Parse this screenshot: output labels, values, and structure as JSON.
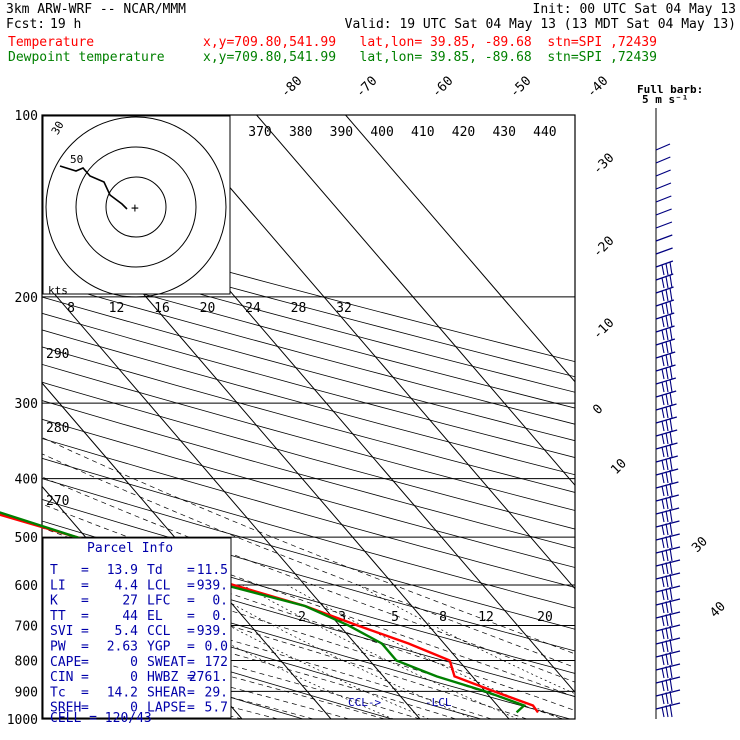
{
  "header": {
    "model": "3km ARW-WRF -- NCAR/MMM",
    "init": "Init: 00 UTC Sat 04 May 13",
    "fcst_label": "Fcst:",
    "fcst_hour": "19 h",
    "valid": "Valid: 19 UTC Sat 04 May 13 (13 MDT Sat 04 May 13)"
  },
  "legend": [
    {
      "label": "Temperature",
      "info": "x,y=709.80,541.99   lat,lon= 39.85, -89.68  stn=SPI ,72439",
      "color": "#ff0000"
    },
    {
      "label": "Dewpoint temperature",
      "info": "x,y=709.80,541.99   lat,lon= 39.85, -89.68  stn=SPI ,72439",
      "color": "#008000"
    }
  ],
  "chart_data": {
    "type": "line",
    "title": "Skew-T log-P sounding",
    "ylabel": "Pressure (hPa)",
    "pressure_levels": [
      100,
      200,
      300,
      400,
      500,
      600,
      700,
      800,
      900,
      1000
    ],
    "temp_labels": [
      "-80",
      "-70",
      "-60",
      "-50",
      "-40",
      "-30",
      "-20",
      "-10",
      "0",
      "10",
      "30",
      "40"
    ],
    "theta_e_labels": [
      "370",
      "380",
      "390",
      "400",
      "410",
      "420",
      "430",
      "440"
    ],
    "hodo_scale_labels": [
      "8",
      "12",
      "16",
      "20",
      "24",
      "28",
      "32"
    ],
    "mixing_ratio_labels": [
      "2",
      "3",
      "5",
      "8",
      "12",
      "20"
    ],
    "theta_labels": [
      "290",
      "280",
      "270"
    ],
    "hodograph": {
      "label_kts": "kts",
      "label_30": "30",
      "label_50": "50"
    },
    "full_barb": "Full barb:",
    "barb_unit": "5 m s⁻¹",
    "ccl_marker": "CCL->",
    "lcl_marker": "-LCL",
    "series": [
      {
        "name": "Temperature",
        "color": "#ff0000",
        "points": [
          [
            100,
            -55
          ],
          [
            115,
            -54
          ],
          [
            130,
            -52
          ],
          [
            160,
            -50
          ],
          [
            180,
            -53
          ],
          [
            200,
            -55
          ],
          [
            220,
            -57
          ],
          [
            250,
            -58
          ],
          [
            300,
            -53
          ],
          [
            350,
            -44
          ],
          [
            400,
            -37
          ],
          [
            450,
            -29
          ],
          [
            500,
            -21
          ],
          [
            550,
            -14
          ],
          [
            600,
            -8
          ],
          [
            650,
            -2
          ],
          [
            700,
            2
          ],
          [
            750,
            6
          ],
          [
            800,
            9
          ],
          [
            850,
            8
          ],
          [
            900,
            11
          ],
          [
            950,
            14
          ],
          [
            975,
            13.9
          ]
        ]
      },
      {
        "name": "Dewpoint",
        "color": "#008000",
        "points": [
          [
            100,
            -73
          ],
          [
            130,
            -73
          ],
          [
            150,
            -73
          ],
          [
            170,
            -71
          ],
          [
            190,
            -66
          ],
          [
            200,
            -64
          ],
          [
            230,
            -64
          ],
          [
            260,
            -61
          ],
          [
            300,
            -57
          ],
          [
            350,
            -48
          ],
          [
            400,
            -37
          ],
          [
            450,
            -28
          ],
          [
            500,
            -21
          ],
          [
            550,
            -15
          ],
          [
            600,
            -9
          ],
          [
            650,
            -2
          ],
          [
            700,
            1
          ],
          [
            750,
            3
          ],
          [
            800,
            3
          ],
          [
            850,
            6
          ],
          [
            900,
            10
          ],
          [
            950,
            13
          ],
          [
            975,
            11.5
          ]
        ]
      }
    ]
  },
  "parcel": {
    "title": "Parcel Info",
    "rows": [
      {
        "k1": "T",
        "v1": "13.9",
        "k2": "Td",
        "v2": "11.5"
      },
      {
        "k1": "LI",
        "v1": "4.4",
        "k2": "LCL",
        "v2": "939."
      },
      {
        "k1": "K",
        "v1": "27",
        "k2": "LFC",
        "v2": "0."
      },
      {
        "k1": "TT",
        "v1": "44",
        "k2": "EL",
        "v2": "0."
      },
      {
        "k1": "SVI",
        "v1": "5.4",
        "k2": "CCL",
        "v2": "939."
      },
      {
        "k1": "PW",
        "v1": "2.63",
        "k2": "YGP",
        "v2": "0.0"
      },
      {
        "k1": "CAPE",
        "v1": "0",
        "k2": "SWEAT",
        "v2": "172"
      },
      {
        "k1": "CIN",
        "v1": "0",
        "k2": "HWBZ",
        "v2": "2761."
      },
      {
        "k1": "Tc",
        "v1": "14.2",
        "k2": "SHEAR",
        "v2": "29."
      },
      {
        "k1": "SREH",
        "v1": "0",
        "k2": "LAPSE",
        "v2": "5.7"
      }
    ],
    "cell": "CELL = 120/43"
  },
  "colors": {
    "frame": "#000000",
    "theta": "#000000",
    "panel": "#0000aa",
    "barb": "#000080"
  }
}
